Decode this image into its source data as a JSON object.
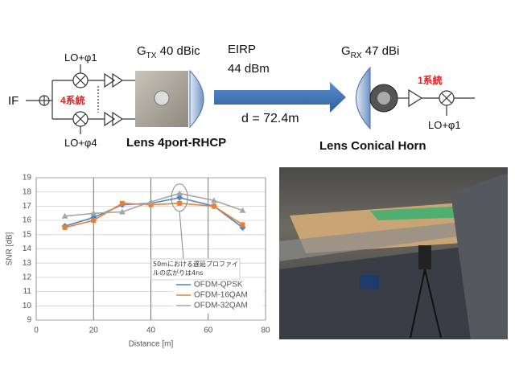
{
  "diagram": {
    "if_label": "IF",
    "lo_top": "LO+φ1",
    "lo_bottom": "LO+φ4",
    "tx_channels": "4系統",
    "gtx": {
      "symbol": "G",
      "sub": "TX",
      "value": " 40 dBic"
    },
    "eirp_label": "EIRP",
    "eirp_value": "44 dBm",
    "distance": "d = 72.4m",
    "grx": {
      "symbol": "G",
      "sub": "RX",
      "value": " 47 dBi"
    },
    "rx_channels": "1系統",
    "lo_rx": "LO+φ1",
    "tx_antenna": "Lens 4port-RHCP",
    "rx_antenna": "Lens Conical Horn"
  },
  "chart_data": {
    "type": "line",
    "x_label": "Distance [m]",
    "y_label": "SNR [dB]",
    "x": [
      10,
      20,
      30,
      40,
      50,
      62,
      72
    ],
    "series": [
      {
        "name": "OFDM-QPSK",
        "color": "#4a86c8",
        "marker": "diamond",
        "values": [
          15.6,
          16.2,
          17.1,
          17.2,
          17.6,
          17.0,
          15.5
        ]
      },
      {
        "name": "OFDM-16QAM",
        "color": "#ed7d31",
        "marker": "square",
        "values": [
          15.5,
          16.0,
          17.2,
          17.1,
          17.2,
          17.0,
          15.7
        ]
      },
      {
        "name": "OFDM-32QAM",
        "color": "#a5a5a5",
        "marker": "triangle",
        "values": [
          16.3,
          16.5,
          16.6,
          17.3,
          17.9,
          17.4,
          16.7
        ]
      }
    ],
    "annotation": "50mにおける遅延プロファイルの広がりは4ns",
    "xlim": [
      0,
      80
    ],
    "xticks": [
      0,
      20,
      40,
      60,
      80
    ],
    "ylim": [
      9,
      19
    ],
    "yticks": [
      9,
      10,
      11,
      12,
      13,
      14,
      15,
      16,
      17,
      18,
      19
    ],
    "grid": true
  }
}
